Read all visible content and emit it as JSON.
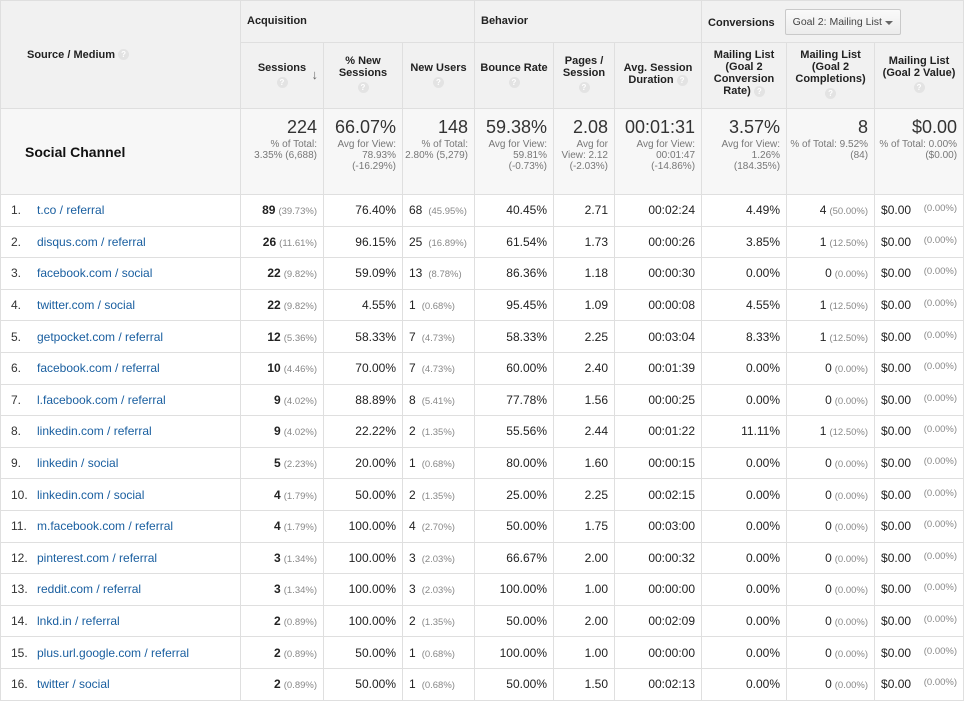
{
  "groups": {
    "acquisition": "Acquisition",
    "behavior": "Behavior",
    "conversions": "Conversions",
    "goal_select": "Goal 2: Mailing List"
  },
  "columns": {
    "source": "Source / Medium",
    "sessions": "Sessions",
    "new_sessions": "% New Sessions",
    "new_users": "New Users",
    "bounce_rate": "Bounce Rate",
    "pages_session": "Pages / Session",
    "avg_session": "Avg. Session Duration",
    "conv_rate": "Mailing List (Goal 2 Conversion Rate)",
    "completions": "Mailing List (Goal 2 Completions)",
    "value": "Mailing List (Goal 2 Value)"
  },
  "help_glyph": "?",
  "sort_glyph": "↓",
  "summary": {
    "label": "Social Channel",
    "sessions": {
      "value": "224",
      "sub": "% of Total: 3.35% (6,688)"
    },
    "new_sessions": {
      "value": "66.07%",
      "sub": "Avg for View: 78.93% (-16.29%)"
    },
    "new_users": {
      "value": "148",
      "sub": "% of Total: 2.80% (5,279)"
    },
    "bounce_rate": {
      "value": "59.38%",
      "sub": "Avg for View: 59.81% (-0.73%)"
    },
    "pages_session": {
      "value": "2.08",
      "sub": "Avg for View: 2.12 (-2.03%)"
    },
    "avg_session": {
      "value": "00:01:31",
      "sub": "Avg for View: 00:01:47 (-14.86%)"
    },
    "conv_rate": {
      "value": "3.57%",
      "sub": "Avg for View: 1.26% (184.35%)"
    },
    "completions": {
      "value": "8",
      "sub": "% of Total: 9.52% (84)"
    },
    "value": {
      "value": "$0.00",
      "sub": "% of Total: 0.00% ($0.00)"
    }
  },
  "rows": [
    {
      "index": "1.",
      "source": "t.co / referral",
      "sessions": "89",
      "sessions_pct": "(39.73%)",
      "new_sessions": "76.40%",
      "new_users": "68",
      "new_users_pct": "(45.95%)",
      "bounce_rate": "40.45%",
      "pages_session": "2.71",
      "avg_session": "00:02:24",
      "conv_rate": "4.49%",
      "completions": "4",
      "completions_pct": "(50.00%)",
      "value": "$0.00",
      "value_pct": "(0.00%)"
    },
    {
      "index": "2.",
      "source": "disqus.com / referral",
      "sessions": "26",
      "sessions_pct": "(11.61%)",
      "new_sessions": "96.15%",
      "new_users": "25",
      "new_users_pct": "(16.89%)",
      "bounce_rate": "61.54%",
      "pages_session": "1.73",
      "avg_session": "00:00:26",
      "conv_rate": "3.85%",
      "completions": "1",
      "completions_pct": "(12.50%)",
      "value": "$0.00",
      "value_pct": "(0.00%)"
    },
    {
      "index": "3.",
      "source": "facebook.com / social",
      "sessions": "22",
      "sessions_pct": "(9.82%)",
      "new_sessions": "59.09%",
      "new_users": "13",
      "new_users_pct": "(8.78%)",
      "bounce_rate": "86.36%",
      "pages_session": "1.18",
      "avg_session": "00:00:30",
      "conv_rate": "0.00%",
      "completions": "0",
      "completions_pct": "(0.00%)",
      "value": "$0.00",
      "value_pct": "(0.00%)"
    },
    {
      "index": "4.",
      "source": "twitter.com / social",
      "sessions": "22",
      "sessions_pct": "(9.82%)",
      "new_sessions": "4.55%",
      "new_users": "1",
      "new_users_pct": "(0.68%)",
      "bounce_rate": "95.45%",
      "pages_session": "1.09",
      "avg_session": "00:00:08",
      "conv_rate": "4.55%",
      "completions": "1",
      "completions_pct": "(12.50%)",
      "value": "$0.00",
      "value_pct": "(0.00%)"
    },
    {
      "index": "5.",
      "source": "getpocket.com / referral",
      "sessions": "12",
      "sessions_pct": "(5.36%)",
      "new_sessions": "58.33%",
      "new_users": "7",
      "new_users_pct": "(4.73%)",
      "bounce_rate": "58.33%",
      "pages_session": "2.25",
      "avg_session": "00:03:04",
      "conv_rate": "8.33%",
      "completions": "1",
      "completions_pct": "(12.50%)",
      "value": "$0.00",
      "value_pct": "(0.00%)"
    },
    {
      "index": "6.",
      "source": "facebook.com / referral",
      "sessions": "10",
      "sessions_pct": "(4.46%)",
      "new_sessions": "70.00%",
      "new_users": "7",
      "new_users_pct": "(4.73%)",
      "bounce_rate": "60.00%",
      "pages_session": "2.40",
      "avg_session": "00:01:39",
      "conv_rate": "0.00%",
      "completions": "0",
      "completions_pct": "(0.00%)",
      "value": "$0.00",
      "value_pct": "(0.00%)"
    },
    {
      "index": "7.",
      "source": "l.facebook.com / referral",
      "sessions": "9",
      "sessions_pct": "(4.02%)",
      "new_sessions": "88.89%",
      "new_users": "8",
      "new_users_pct": "(5.41%)",
      "bounce_rate": "77.78%",
      "pages_session": "1.56",
      "avg_session": "00:00:25",
      "conv_rate": "0.00%",
      "completions": "0",
      "completions_pct": "(0.00%)",
      "value": "$0.00",
      "value_pct": "(0.00%)"
    },
    {
      "index": "8.",
      "source": "linkedin.com / referral",
      "sessions": "9",
      "sessions_pct": "(4.02%)",
      "new_sessions": "22.22%",
      "new_users": "2",
      "new_users_pct": "(1.35%)",
      "bounce_rate": "55.56%",
      "pages_session": "2.44",
      "avg_session": "00:01:22",
      "conv_rate": "11.11%",
      "completions": "1",
      "completions_pct": "(12.50%)",
      "value": "$0.00",
      "value_pct": "(0.00%)"
    },
    {
      "index": "9.",
      "source": "linkedin / social",
      "sessions": "5",
      "sessions_pct": "(2.23%)",
      "new_sessions": "20.00%",
      "new_users": "1",
      "new_users_pct": "(0.68%)",
      "bounce_rate": "80.00%",
      "pages_session": "1.60",
      "avg_session": "00:00:15",
      "conv_rate": "0.00%",
      "completions": "0",
      "completions_pct": "(0.00%)",
      "value": "$0.00",
      "value_pct": "(0.00%)"
    },
    {
      "index": "10.",
      "source": "linkedin.com / social",
      "sessions": "4",
      "sessions_pct": "(1.79%)",
      "new_sessions": "50.00%",
      "new_users": "2",
      "new_users_pct": "(1.35%)",
      "bounce_rate": "25.00%",
      "pages_session": "2.25",
      "avg_session": "00:02:15",
      "conv_rate": "0.00%",
      "completions": "0",
      "completions_pct": "(0.00%)",
      "value": "$0.00",
      "value_pct": "(0.00%)"
    },
    {
      "index": "11.",
      "source": "m.facebook.com / referral",
      "sessions": "4",
      "sessions_pct": "(1.79%)",
      "new_sessions": "100.00%",
      "new_users": "4",
      "new_users_pct": "(2.70%)",
      "bounce_rate": "50.00%",
      "pages_session": "1.75",
      "avg_session": "00:03:00",
      "conv_rate": "0.00%",
      "completions": "0",
      "completions_pct": "(0.00%)",
      "value": "$0.00",
      "value_pct": "(0.00%)"
    },
    {
      "index": "12.",
      "source": "pinterest.com / referral",
      "sessions": "3",
      "sessions_pct": "(1.34%)",
      "new_sessions": "100.00%",
      "new_users": "3",
      "new_users_pct": "(2.03%)",
      "bounce_rate": "66.67%",
      "pages_session": "2.00",
      "avg_session": "00:00:32",
      "conv_rate": "0.00%",
      "completions": "0",
      "completions_pct": "(0.00%)",
      "value": "$0.00",
      "value_pct": "(0.00%)"
    },
    {
      "index": "13.",
      "source": "reddit.com / referral",
      "sessions": "3",
      "sessions_pct": "(1.34%)",
      "new_sessions": "100.00%",
      "new_users": "3",
      "new_users_pct": "(2.03%)",
      "bounce_rate": "100.00%",
      "pages_session": "1.00",
      "avg_session": "00:00:00",
      "conv_rate": "0.00%",
      "completions": "0",
      "completions_pct": "(0.00%)",
      "value": "$0.00",
      "value_pct": "(0.00%)"
    },
    {
      "index": "14.",
      "source": "lnkd.in / referral",
      "sessions": "2",
      "sessions_pct": "(0.89%)",
      "new_sessions": "100.00%",
      "new_users": "2",
      "new_users_pct": "(1.35%)",
      "bounce_rate": "50.00%",
      "pages_session": "2.00",
      "avg_session": "00:02:09",
      "conv_rate": "0.00%",
      "completions": "0",
      "completions_pct": "(0.00%)",
      "value": "$0.00",
      "value_pct": "(0.00%)"
    },
    {
      "index": "15.",
      "source": "plus.url.google.com / referral",
      "sessions": "2",
      "sessions_pct": "(0.89%)",
      "new_sessions": "50.00%",
      "new_users": "1",
      "new_users_pct": "(0.68%)",
      "bounce_rate": "100.00%",
      "pages_session": "1.00",
      "avg_session": "00:00:00",
      "conv_rate": "0.00%",
      "completions": "0",
      "completions_pct": "(0.00%)",
      "value": "$0.00",
      "value_pct": "(0.00%)"
    },
    {
      "index": "16.",
      "source": "twitter / social",
      "sessions": "2",
      "sessions_pct": "(0.89%)",
      "new_sessions": "50.00%",
      "new_users": "1",
      "new_users_pct": "(0.68%)",
      "bounce_rate": "50.00%",
      "pages_session": "1.50",
      "avg_session": "00:02:13",
      "conv_rate": "0.00%",
      "completions": "0",
      "completions_pct": "(0.00%)",
      "value": "$0.00",
      "value_pct": "(0.00%)"
    }
  ]
}
